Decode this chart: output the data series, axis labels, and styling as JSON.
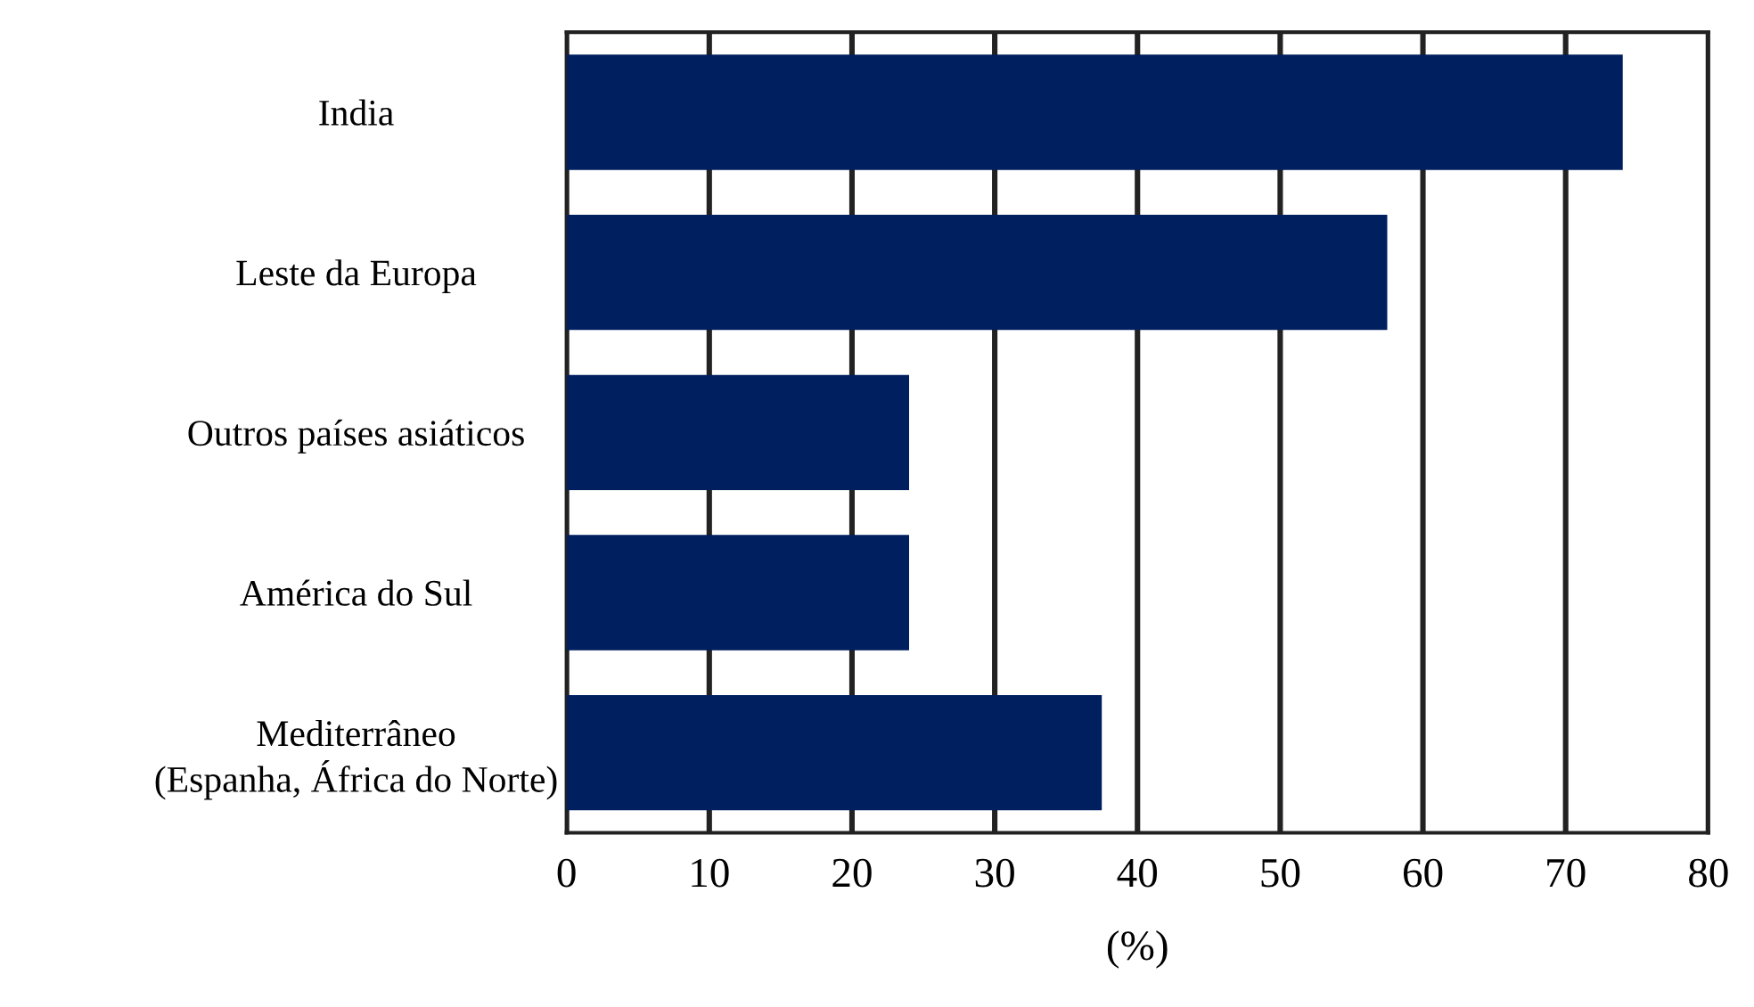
{
  "chart_data": {
    "type": "bar",
    "orientation": "horizontal",
    "xlabel": "(%)",
    "categories": [
      "India",
      "Leste da Europa",
      "Outros países asiáticos",
      "América do Sul",
      "Mediterrâneo\n(Espanha, África do Norte)"
    ],
    "values": [
      74,
      57.5,
      24,
      24,
      37.5
    ],
    "color": "#001f5f",
    "xlim": [
      0,
      80
    ],
    "xticks": [
      0,
      10,
      20,
      30,
      40,
      50,
      60,
      70,
      80
    ],
    "grid": "x"
  }
}
